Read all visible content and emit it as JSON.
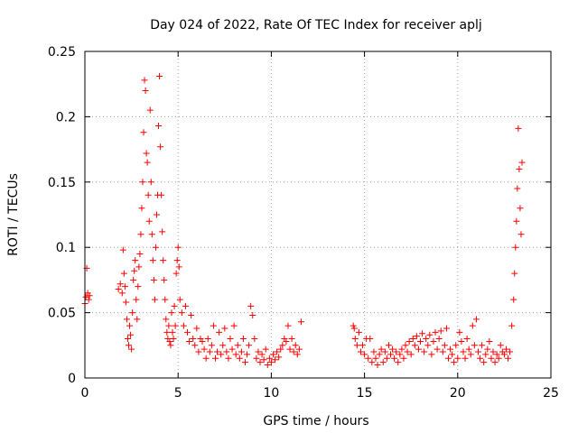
{
  "chart_data": {
    "type": "scatter",
    "title": "Day 024 of 2022, Rate Of TEC Index for receiver aplj",
    "xlabel": "GPS time / hours",
    "ylabel": "ROTI / TECUs",
    "xlim": [
      0,
      25
    ],
    "ylim": [
      0,
      0.25
    ],
    "xticks": [
      0,
      5,
      10,
      15,
      20,
      25
    ],
    "xtick_labels": [
      "0",
      "5",
      "10",
      "15",
      "20",
      "25"
    ],
    "yticks": [
      0,
      0.05,
      0.1,
      0.15,
      0.2,
      0.25
    ],
    "ytick_labels": [
      "0",
      "0.05",
      "0.1",
      "0.15",
      "0.2",
      "0.25"
    ],
    "grid": true,
    "marker": "+",
    "color": "#ff0000",
    "series": [
      {
        "name": "ROTI",
        "points": [
          [
            0.0,
            0.057
          ],
          [
            0.05,
            0.062
          ],
          [
            0.1,
            0.084
          ],
          [
            0.15,
            0.065
          ],
          [
            0.2,
            0.06
          ],
          [
            0.25,
            0.063
          ],
          [
            1.8,
            0.068
          ],
          [
            1.9,
            0.072
          ],
          [
            2.0,
            0.065
          ],
          [
            2.05,
            0.098
          ],
          [
            2.1,
            0.08
          ],
          [
            2.15,
            0.07
          ],
          [
            2.2,
            0.058
          ],
          [
            2.25,
            0.045
          ],
          [
            2.3,
            0.03
          ],
          [
            2.35,
            0.025
          ],
          [
            2.4,
            0.04
          ],
          [
            2.45,
            0.033
          ],
          [
            2.5,
            0.022
          ],
          [
            2.55,
            0.05
          ],
          [
            2.6,
            0.075
          ],
          [
            2.65,
            0.082
          ],
          [
            2.7,
            0.09
          ],
          [
            2.75,
            0.06
          ],
          [
            2.8,
            0.045
          ],
          [
            2.85,
            0.07
          ],
          [
            2.9,
            0.085
          ],
          [
            2.95,
            0.095
          ],
          [
            3.0,
            0.11
          ],
          [
            3.05,
            0.13
          ],
          [
            3.1,
            0.15
          ],
          [
            3.15,
            0.188
          ],
          [
            3.2,
            0.228
          ],
          [
            3.25,
            0.22
          ],
          [
            3.3,
            0.172
          ],
          [
            3.35,
            0.165
          ],
          [
            3.4,
            0.14
          ],
          [
            3.45,
            0.12
          ],
          [
            3.5,
            0.205
          ],
          [
            3.55,
            0.15
          ],
          [
            3.6,
            0.11
          ],
          [
            3.65,
            0.09
          ],
          [
            3.7,
            0.075
          ],
          [
            3.75,
            0.06
          ],
          [
            3.8,
            0.1
          ],
          [
            3.85,
            0.125
          ],
          [
            3.9,
            0.14
          ],
          [
            3.95,
            0.193
          ],
          [
            4.0,
            0.231
          ],
          [
            4.05,
            0.177
          ],
          [
            4.1,
            0.14
          ],
          [
            4.15,
            0.112
          ],
          [
            4.2,
            0.09
          ],
          [
            4.25,
            0.075
          ],
          [
            4.3,
            0.06
          ],
          [
            4.35,
            0.045
          ],
          [
            4.4,
            0.035
          ],
          [
            4.45,
            0.03
          ],
          [
            4.5,
            0.04
          ],
          [
            4.55,
            0.028
          ],
          [
            4.6,
            0.025
          ],
          [
            4.65,
            0.05
          ],
          [
            4.7,
            0.035
          ],
          [
            4.75,
            0.03
          ],
          [
            4.8,
            0.055
          ],
          [
            4.85,
            0.04
          ],
          [
            4.9,
            0.08
          ],
          [
            4.95,
            0.09
          ],
          [
            5.0,
            0.1
          ],
          [
            5.05,
            0.085
          ],
          [
            5.1,
            0.06
          ],
          [
            5.2,
            0.05
          ],
          [
            5.3,
            0.04
          ],
          [
            5.4,
            0.055
          ],
          [
            5.5,
            0.035
          ],
          [
            5.6,
            0.028
          ],
          [
            5.7,
            0.048
          ],
          [
            5.8,
            0.03
          ],
          [
            5.9,
            0.025
          ],
          [
            6.0,
            0.038
          ],
          [
            6.1,
            0.02
          ],
          [
            6.2,
            0.03
          ],
          [
            6.3,
            0.028
          ],
          [
            6.4,
            0.022
          ],
          [
            6.5,
            0.015
          ],
          [
            6.6,
            0.03
          ],
          [
            6.7,
            0.02
          ],
          [
            6.8,
            0.025
          ],
          [
            6.9,
            0.04
          ],
          [
            7.0,
            0.015
          ],
          [
            7.1,
            0.02
          ],
          [
            7.2,
            0.035
          ],
          [
            7.3,
            0.018
          ],
          [
            7.4,
            0.025
          ],
          [
            7.5,
            0.038
          ],
          [
            7.6,
            0.02
          ],
          [
            7.7,
            0.015
          ],
          [
            7.8,
            0.03
          ],
          [
            7.9,
            0.022
          ],
          [
            8.0,
            0.04
          ],
          [
            8.1,
            0.018
          ],
          [
            8.2,
            0.025
          ],
          [
            8.3,
            0.015
          ],
          [
            8.4,
            0.02
          ],
          [
            8.5,
            0.03
          ],
          [
            8.6,
            0.012
          ],
          [
            8.7,
            0.018
          ],
          [
            8.8,
            0.025
          ],
          [
            8.9,
            0.055
          ],
          [
            9.0,
            0.048
          ],
          [
            9.1,
            0.03
          ],
          [
            9.2,
            0.015
          ],
          [
            9.3,
            0.02
          ],
          [
            9.4,
            0.012
          ],
          [
            9.5,
            0.018
          ],
          [
            9.6,
            0.014
          ],
          [
            9.7,
            0.022
          ],
          [
            9.8,
            0.01
          ],
          [
            9.9,
            0.015
          ],
          [
            10.0,
            0.012
          ],
          [
            10.1,
            0.018
          ],
          [
            10.2,
            0.014
          ],
          [
            10.3,
            0.02
          ],
          [
            10.4,
            0.016
          ],
          [
            10.5,
            0.022
          ],
          [
            10.6,
            0.025
          ],
          [
            10.7,
            0.03
          ],
          [
            10.8,
            0.028
          ],
          [
            10.9,
            0.04
          ],
          [
            11.0,
            0.022
          ],
          [
            11.1,
            0.03
          ],
          [
            11.2,
            0.02
          ],
          [
            11.3,
            0.025
          ],
          [
            11.4,
            0.018
          ],
          [
            11.5,
            0.022
          ],
          [
            11.6,
            0.043
          ],
          [
            14.4,
            0.04
          ],
          [
            14.45,
            0.038
          ],
          [
            14.5,
            0.03
          ],
          [
            14.6,
            0.025
          ],
          [
            14.7,
            0.035
          ],
          [
            14.8,
            0.02
          ],
          [
            14.9,
            0.025
          ],
          [
            15.0,
            0.018
          ],
          [
            15.1,
            0.03
          ],
          [
            15.2,
            0.015
          ],
          [
            15.3,
            0.03
          ],
          [
            15.4,
            0.012
          ],
          [
            15.5,
            0.02
          ],
          [
            15.6,
            0.015
          ],
          [
            15.7,
            0.01
          ],
          [
            15.8,
            0.018
          ],
          [
            15.9,
            0.022
          ],
          [
            16.0,
            0.012
          ],
          [
            16.1,
            0.02
          ],
          [
            16.2,
            0.015
          ],
          [
            16.3,
            0.025
          ],
          [
            16.4,
            0.018
          ],
          [
            16.5,
            0.022
          ],
          [
            16.6,
            0.015
          ],
          [
            16.7,
            0.02
          ],
          [
            16.8,
            0.012
          ],
          [
            16.9,
            0.018
          ],
          [
            17.0,
            0.022
          ],
          [
            17.1,
            0.015
          ],
          [
            17.2,
            0.025
          ],
          [
            17.3,
            0.02
          ],
          [
            17.4,
            0.028
          ],
          [
            17.5,
            0.018
          ],
          [
            17.6,
            0.03
          ],
          [
            17.7,
            0.025
          ],
          [
            17.8,
            0.032
          ],
          [
            17.9,
            0.022
          ],
          [
            18.0,
            0.028
          ],
          [
            18.1,
            0.034
          ],
          [
            18.2,
            0.02
          ],
          [
            18.3,
            0.03
          ],
          [
            18.4,
            0.025
          ],
          [
            18.5,
            0.033
          ],
          [
            18.6,
            0.018
          ],
          [
            18.7,
            0.028
          ],
          [
            18.8,
            0.035
          ],
          [
            18.9,
            0.022
          ],
          [
            19.0,
            0.03
          ],
          [
            19.1,
            0.036
          ],
          [
            19.2,
            0.02
          ],
          [
            19.3,
            0.025
          ],
          [
            19.4,
            0.038
          ],
          [
            19.5,
            0.015
          ],
          [
            19.6,
            0.022
          ],
          [
            19.7,
            0.018
          ],
          [
            19.8,
            0.012
          ],
          [
            19.9,
            0.025
          ],
          [
            20.0,
            0.015
          ],
          [
            20.1,
            0.035
          ],
          [
            20.2,
            0.028
          ],
          [
            20.3,
            0.02
          ],
          [
            20.4,
            0.015
          ],
          [
            20.5,
            0.03
          ],
          [
            20.6,
            0.022
          ],
          [
            20.7,
            0.018
          ],
          [
            20.8,
            0.04
          ],
          [
            20.9,
            0.025
          ],
          [
            21.0,
            0.045
          ],
          [
            21.1,
            0.02
          ],
          [
            21.2,
            0.015
          ],
          [
            21.3,
            0.025
          ],
          [
            21.4,
            0.012
          ],
          [
            21.5,
            0.018
          ],
          [
            21.6,
            0.022
          ],
          [
            21.7,
            0.028
          ],
          [
            21.8,
            0.015
          ],
          [
            21.9,
            0.02
          ],
          [
            22.0,
            0.012
          ],
          [
            22.1,
            0.018
          ],
          [
            22.2,
            0.015
          ],
          [
            22.3,
            0.025
          ],
          [
            22.4,
            0.02
          ],
          [
            22.5,
            0.018
          ],
          [
            22.6,
            0.022
          ],
          [
            22.7,
            0.015
          ],
          [
            22.8,
            0.02
          ],
          [
            22.9,
            0.04
          ],
          [
            23.0,
            0.06
          ],
          [
            23.05,
            0.08
          ],
          [
            23.1,
            0.1
          ],
          [
            23.15,
            0.12
          ],
          [
            23.2,
            0.145
          ],
          [
            23.25,
            0.191
          ],
          [
            23.3,
            0.16
          ],
          [
            23.35,
            0.13
          ],
          [
            23.4,
            0.11
          ],
          [
            23.45,
            0.165
          ]
        ]
      }
    ]
  }
}
